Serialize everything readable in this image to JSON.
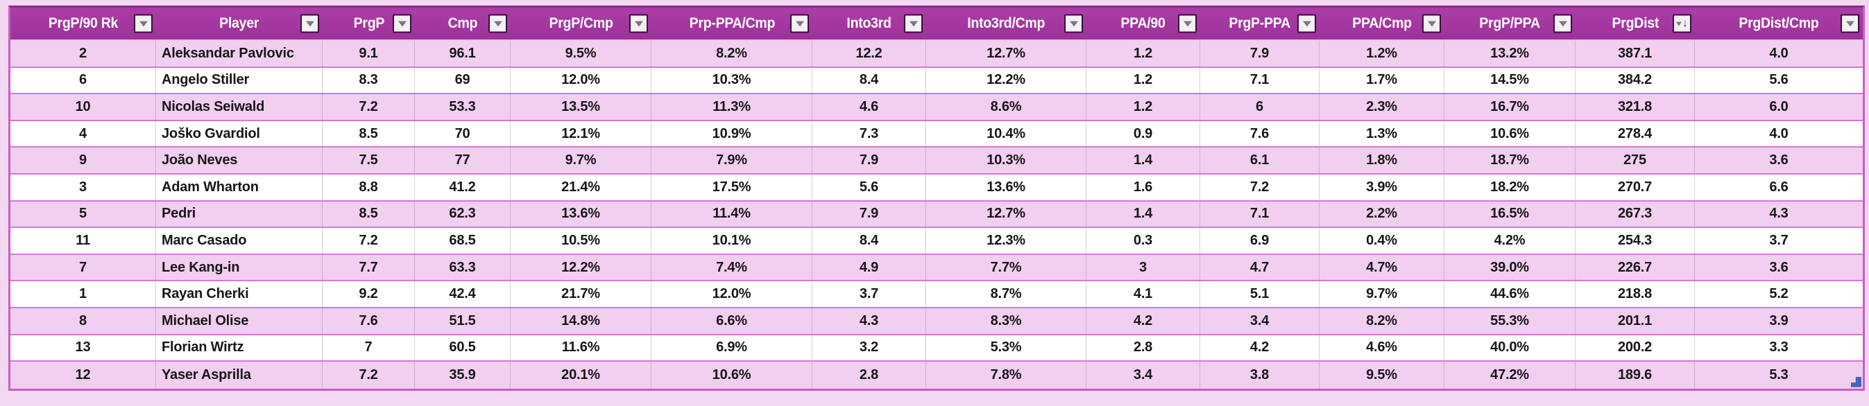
{
  "colors": {
    "page_bg": "#f2d8f0",
    "header_bg": "#9e319a",
    "header_bg_light": "#ab3da7",
    "header_text": "#ffffff",
    "table_border": "#c85fc4",
    "table_border_top": "#8d2b89",
    "grid_line": "#d976d5",
    "row_alt": "#f2cff0",
    "row_main": "#ffffff",
    "cell_text": "#161616",
    "handle_blue": "#4462c4"
  },
  "icons": {
    "filter_dropdown": "filter-dropdown-icon",
    "sort_descending": "sort-descending-filter-icon"
  },
  "table": {
    "columns": [
      {
        "label": "PrgP/90 Rk",
        "filter": "dropdown"
      },
      {
        "label": "Player",
        "filter": "dropdown"
      },
      {
        "label": "PrgP",
        "filter": "dropdown"
      },
      {
        "label": "Cmp",
        "filter": "dropdown"
      },
      {
        "label": "PrgP/Cmp",
        "filter": "dropdown"
      },
      {
        "label": "Prp-PPA/Cmp",
        "filter": "dropdown"
      },
      {
        "label": "Into3rd",
        "filter": "dropdown"
      },
      {
        "label": "Into3rd/Cmp",
        "filter": "dropdown"
      },
      {
        "label": "PPA/90",
        "filter": "dropdown"
      },
      {
        "label": "PrgP-PPA",
        "filter": "dropdown"
      },
      {
        "label": "PPA/Cmp",
        "filter": "dropdown"
      },
      {
        "label": "PrgP/PPA",
        "filter": "dropdown"
      },
      {
        "label": "PrgDist",
        "filter": "sort-desc-dropdown"
      },
      {
        "label": "PrgDist/Cmp",
        "filter": "dropdown"
      }
    ],
    "rows": [
      [
        "2",
        "Aleksandar Pavlovic",
        "9.1",
        "96.1",
        "9.5%",
        "8.2%",
        "12.2",
        "12.7%",
        "1.2",
        "7.9",
        "1.2%",
        "13.2%",
        "387.1",
        "4.0"
      ],
      [
        "6",
        "Angelo Stiller",
        "8.3",
        "69",
        "12.0%",
        "10.3%",
        "8.4",
        "12.2%",
        "1.2",
        "7.1",
        "1.7%",
        "14.5%",
        "384.2",
        "5.6"
      ],
      [
        "10",
        "Nicolas Seiwald",
        "7.2",
        "53.3",
        "13.5%",
        "11.3%",
        "4.6",
        "8.6%",
        "1.2",
        "6",
        "2.3%",
        "16.7%",
        "321.8",
        "6.0"
      ],
      [
        "4",
        "Joško Gvardiol",
        "8.5",
        "70",
        "12.1%",
        "10.9%",
        "7.3",
        "10.4%",
        "0.9",
        "7.6",
        "1.3%",
        "10.6%",
        "278.4",
        "4.0"
      ],
      [
        "9",
        "João Neves",
        "7.5",
        "77",
        "9.7%",
        "7.9%",
        "7.9",
        "10.3%",
        "1.4",
        "6.1",
        "1.8%",
        "18.7%",
        "275",
        "3.6"
      ],
      [
        "3",
        "Adam Wharton",
        "8.8",
        "41.2",
        "21.4%",
        "17.5%",
        "5.6",
        "13.6%",
        "1.6",
        "7.2",
        "3.9%",
        "18.2%",
        "270.7",
        "6.6"
      ],
      [
        "5",
        "Pedri",
        "8.5",
        "62.3",
        "13.6%",
        "11.4%",
        "7.9",
        "12.7%",
        "1.4",
        "7.1",
        "2.2%",
        "16.5%",
        "267.3",
        "4.3"
      ],
      [
        "11",
        "Marc Casado",
        "7.2",
        "68.5",
        "10.5%",
        "10.1%",
        "8.4",
        "12.3%",
        "0.3",
        "6.9",
        "0.4%",
        "4.2%",
        "254.3",
        "3.7"
      ],
      [
        "7",
        "Lee Kang-in",
        "7.7",
        "63.3",
        "12.2%",
        "7.4%",
        "4.9",
        "7.7%",
        "3",
        "4.7",
        "4.7%",
        "39.0%",
        "226.7",
        "3.6"
      ],
      [
        "1",
        "Rayan Cherki",
        "9.2",
        "42.4",
        "21.7%",
        "12.0%",
        "3.7",
        "8.7%",
        "4.1",
        "5.1",
        "9.7%",
        "44.6%",
        "218.8",
        "5.2"
      ],
      [
        "8",
        "Michael Olise",
        "7.6",
        "51.5",
        "14.8%",
        "6.6%",
        "4.3",
        "8.3%",
        "4.2",
        "3.4",
        "8.2%",
        "55.3%",
        "201.1",
        "3.9"
      ],
      [
        "13",
        "Florian Wirtz",
        "7",
        "60.5",
        "11.6%",
        "6.9%",
        "3.2",
        "5.3%",
        "2.8",
        "4.2",
        "4.6%",
        "40.0%",
        "200.2",
        "3.3"
      ],
      [
        "12",
        "Yaser Asprilla",
        "7.2",
        "35.9",
        "20.1%",
        "10.6%",
        "2.8",
        "7.8%",
        "3.4",
        "3.8",
        "9.5%",
        "47.2%",
        "189.6",
        "5.3"
      ]
    ]
  }
}
